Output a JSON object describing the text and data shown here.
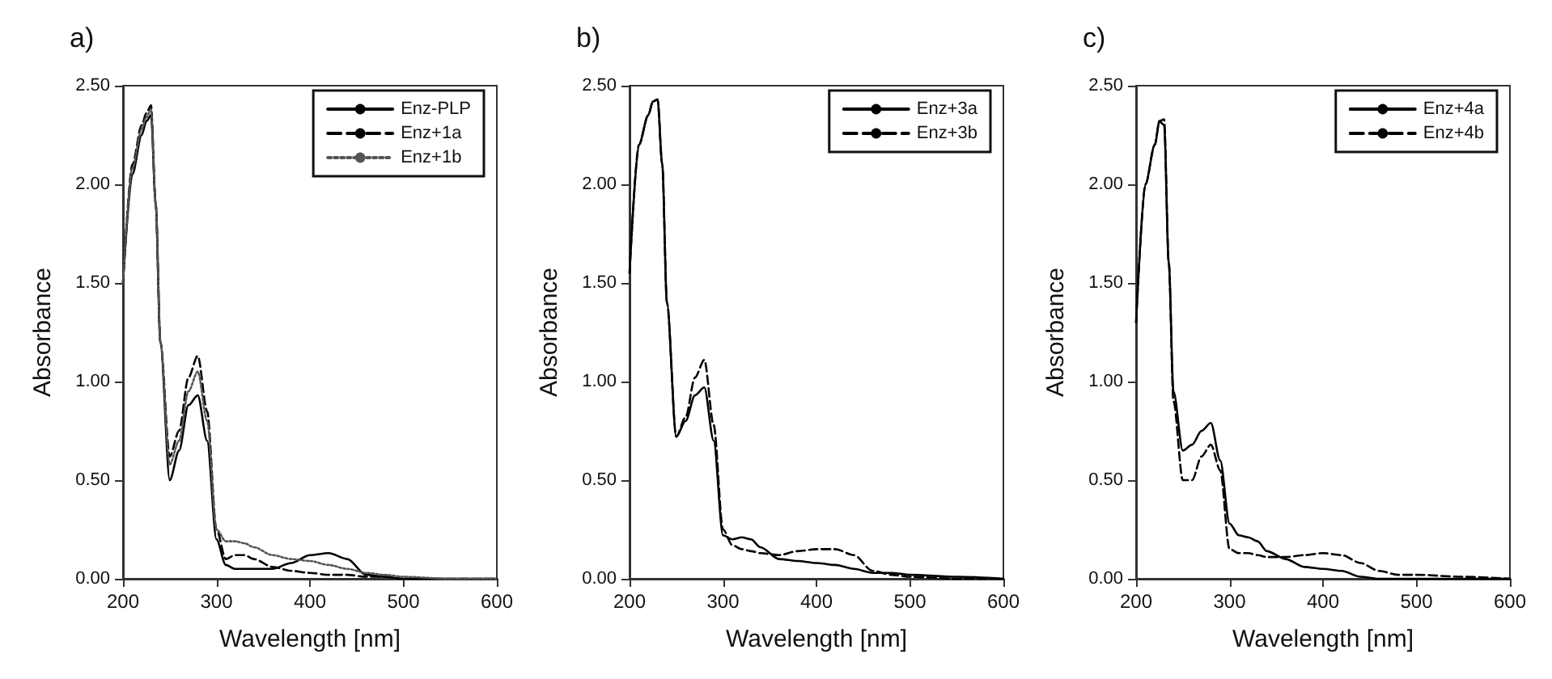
{
  "chart_data": [
    {
      "type": "line",
      "title": "a)",
      "xlabel": "Wavelength [nm]",
      "ylabel": "Absorbance",
      "x": [
        200,
        210,
        220,
        225,
        230,
        235,
        240,
        250,
        260,
        270,
        280,
        290,
        300,
        310,
        320,
        330,
        340,
        360,
        380,
        400,
        420,
        440,
        460,
        480,
        500,
        550,
        600
      ],
      "xlim": [
        200,
        600
      ],
      "xticks": [
        200,
        300,
        400,
        500,
        600
      ],
      "ylim": [
        0,
        2.5
      ],
      "yticks": [
        {
          "value": 0,
          "label": "0.00"
        },
        {
          "value": 0.5,
          "label": "0.50"
        },
        {
          "value": 1,
          "label": "1.00"
        },
        {
          "value": 1.5,
          "label": "1.50"
        },
        {
          "value": 2,
          "label": "2.00"
        },
        {
          "value": 2.5,
          "label": "2.50"
        }
      ],
      "grid": false,
      "legend": "top right",
      "marker": "none",
      "series": [
        {
          "name": "Enz-PLP",
          "color": "#000000",
          "line_style": "solid",
          "values": [
            1.5,
            2.05,
            2.25,
            2.32,
            2.35,
            1.9,
            1.2,
            0.5,
            0.65,
            0.88,
            0.93,
            0.7,
            0.2,
            0.07,
            0.05,
            0.05,
            0.05,
            0.05,
            0.08,
            0.12,
            0.13,
            0.1,
            0.02,
            0.01,
            0,
            0,
            0
          ]
        },
        {
          "name": "Enz+1a",
          "color": "#000000",
          "line_style": "dashed",
          "values": [
            1.5,
            2.1,
            2.3,
            2.36,
            2.4,
            1.9,
            1.2,
            0.62,
            0.75,
            1.02,
            1.13,
            0.85,
            0.25,
            0.1,
            0.12,
            0.12,
            0.1,
            0.06,
            0.04,
            0.03,
            0.02,
            0.02,
            0.01,
            0.01,
            0,
            0,
            0
          ]
        },
        {
          "name": "Enz+1b",
          "color": "#555555",
          "line_style": "dotted",
          "values": [
            1.5,
            2.08,
            2.28,
            2.34,
            2.38,
            1.9,
            1.2,
            0.58,
            0.7,
            0.95,
            1.05,
            0.8,
            0.25,
            0.19,
            0.19,
            0.18,
            0.16,
            0.12,
            0.1,
            0.09,
            0.07,
            0.05,
            0.03,
            0.02,
            0.01,
            0,
            0
          ]
        }
      ]
    },
    {
      "type": "line",
      "title": "b)",
      "xlabel": "Wavelength [nm]",
      "ylabel": "Absorbance",
      "x": [
        200,
        210,
        220,
        225,
        230,
        235,
        240,
        250,
        260,
        270,
        280,
        290,
        300,
        310,
        320,
        330,
        340,
        360,
        380,
        400,
        420,
        440,
        460,
        480,
        500,
        550,
        600
      ],
      "xlim": [
        200,
        600
      ],
      "xticks": [
        200,
        300,
        400,
        500,
        600
      ],
      "ylim": [
        0,
        2.5
      ],
      "yticks": [
        {
          "value": 0,
          "label": "0.00"
        },
        {
          "value": 0.5,
          "label": "0.50"
        },
        {
          "value": 1,
          "label": "1.00"
        },
        {
          "value": 1.5,
          "label": "1.50"
        },
        {
          "value": 2,
          "label": "2.00"
        },
        {
          "value": 2.5,
          "label": "2.50"
        }
      ],
      "grid": false,
      "legend": "top right",
      "marker": "none",
      "series": [
        {
          "name": "Enz+3a",
          "color": "#000000",
          "line_style": "solid",
          "values": [
            1.55,
            2.2,
            2.35,
            2.42,
            2.43,
            2.1,
            1.4,
            0.72,
            0.8,
            0.93,
            0.97,
            0.7,
            0.22,
            0.2,
            0.21,
            0.2,
            0.16,
            0.1,
            0.09,
            0.08,
            0.07,
            0.05,
            0.03,
            0.03,
            0.02,
            0.01,
            0
          ]
        },
        {
          "name": "Enz+3b",
          "color": "#000000",
          "line_style": "dashed",
          "values": [
            1.55,
            2.2,
            2.35,
            2.42,
            2.43,
            2.1,
            1.4,
            0.72,
            0.82,
            1.02,
            1.11,
            0.78,
            0.25,
            0.17,
            0.15,
            0.14,
            0.13,
            0.12,
            0.14,
            0.15,
            0.15,
            0.12,
            0.04,
            0.02,
            0.01,
            0,
            0
          ]
        }
      ]
    },
    {
      "type": "line",
      "title": "c)",
      "xlabel": "Wavelength [nm]",
      "ylabel": "Absorbance",
      "x": [
        200,
        210,
        220,
        225,
        230,
        235,
        240,
        250,
        260,
        270,
        280,
        290,
        300,
        310,
        320,
        330,
        340,
        360,
        380,
        400,
        420,
        440,
        460,
        480,
        500,
        550,
        600
      ],
      "xlim": [
        200,
        600
      ],
      "xticks": [
        200,
        300,
        400,
        500,
        600
      ],
      "ylim": [
        0,
        2.5
      ],
      "yticks": [
        {
          "value": 0,
          "label": "0.00"
        },
        {
          "value": 0.5,
          "label": "0.50"
        },
        {
          "value": 1,
          "label": "1.00"
        },
        {
          "value": 1.5,
          "label": "1.50"
        },
        {
          "value": 2,
          "label": "2.00"
        },
        {
          "value": 2.5,
          "label": "2.50"
        }
      ],
      "grid": false,
      "legend": "top right",
      "marker": "none",
      "series": [
        {
          "name": "Enz+4a",
          "color": "#000000",
          "line_style": "solid",
          "values": [
            1.3,
            2.0,
            2.2,
            2.32,
            2.3,
            1.6,
            0.95,
            0.65,
            0.68,
            0.75,
            0.79,
            0.6,
            0.28,
            0.22,
            0.21,
            0.19,
            0.14,
            0.1,
            0.06,
            0.05,
            0.04,
            0.01,
            0,
            0,
            0,
            0,
            0
          ]
        },
        {
          "name": "Enz+4b",
          "color": "#000000",
          "line_style": "dashed",
          "values": [
            1.3,
            2.0,
            2.2,
            2.32,
            2.33,
            1.6,
            0.9,
            0.5,
            0.5,
            0.62,
            0.68,
            0.55,
            0.15,
            0.13,
            0.13,
            0.12,
            0.11,
            0.11,
            0.12,
            0.13,
            0.12,
            0.08,
            0.04,
            0.02,
            0.02,
            0.01,
            0
          ]
        }
      ]
    }
  ]
}
